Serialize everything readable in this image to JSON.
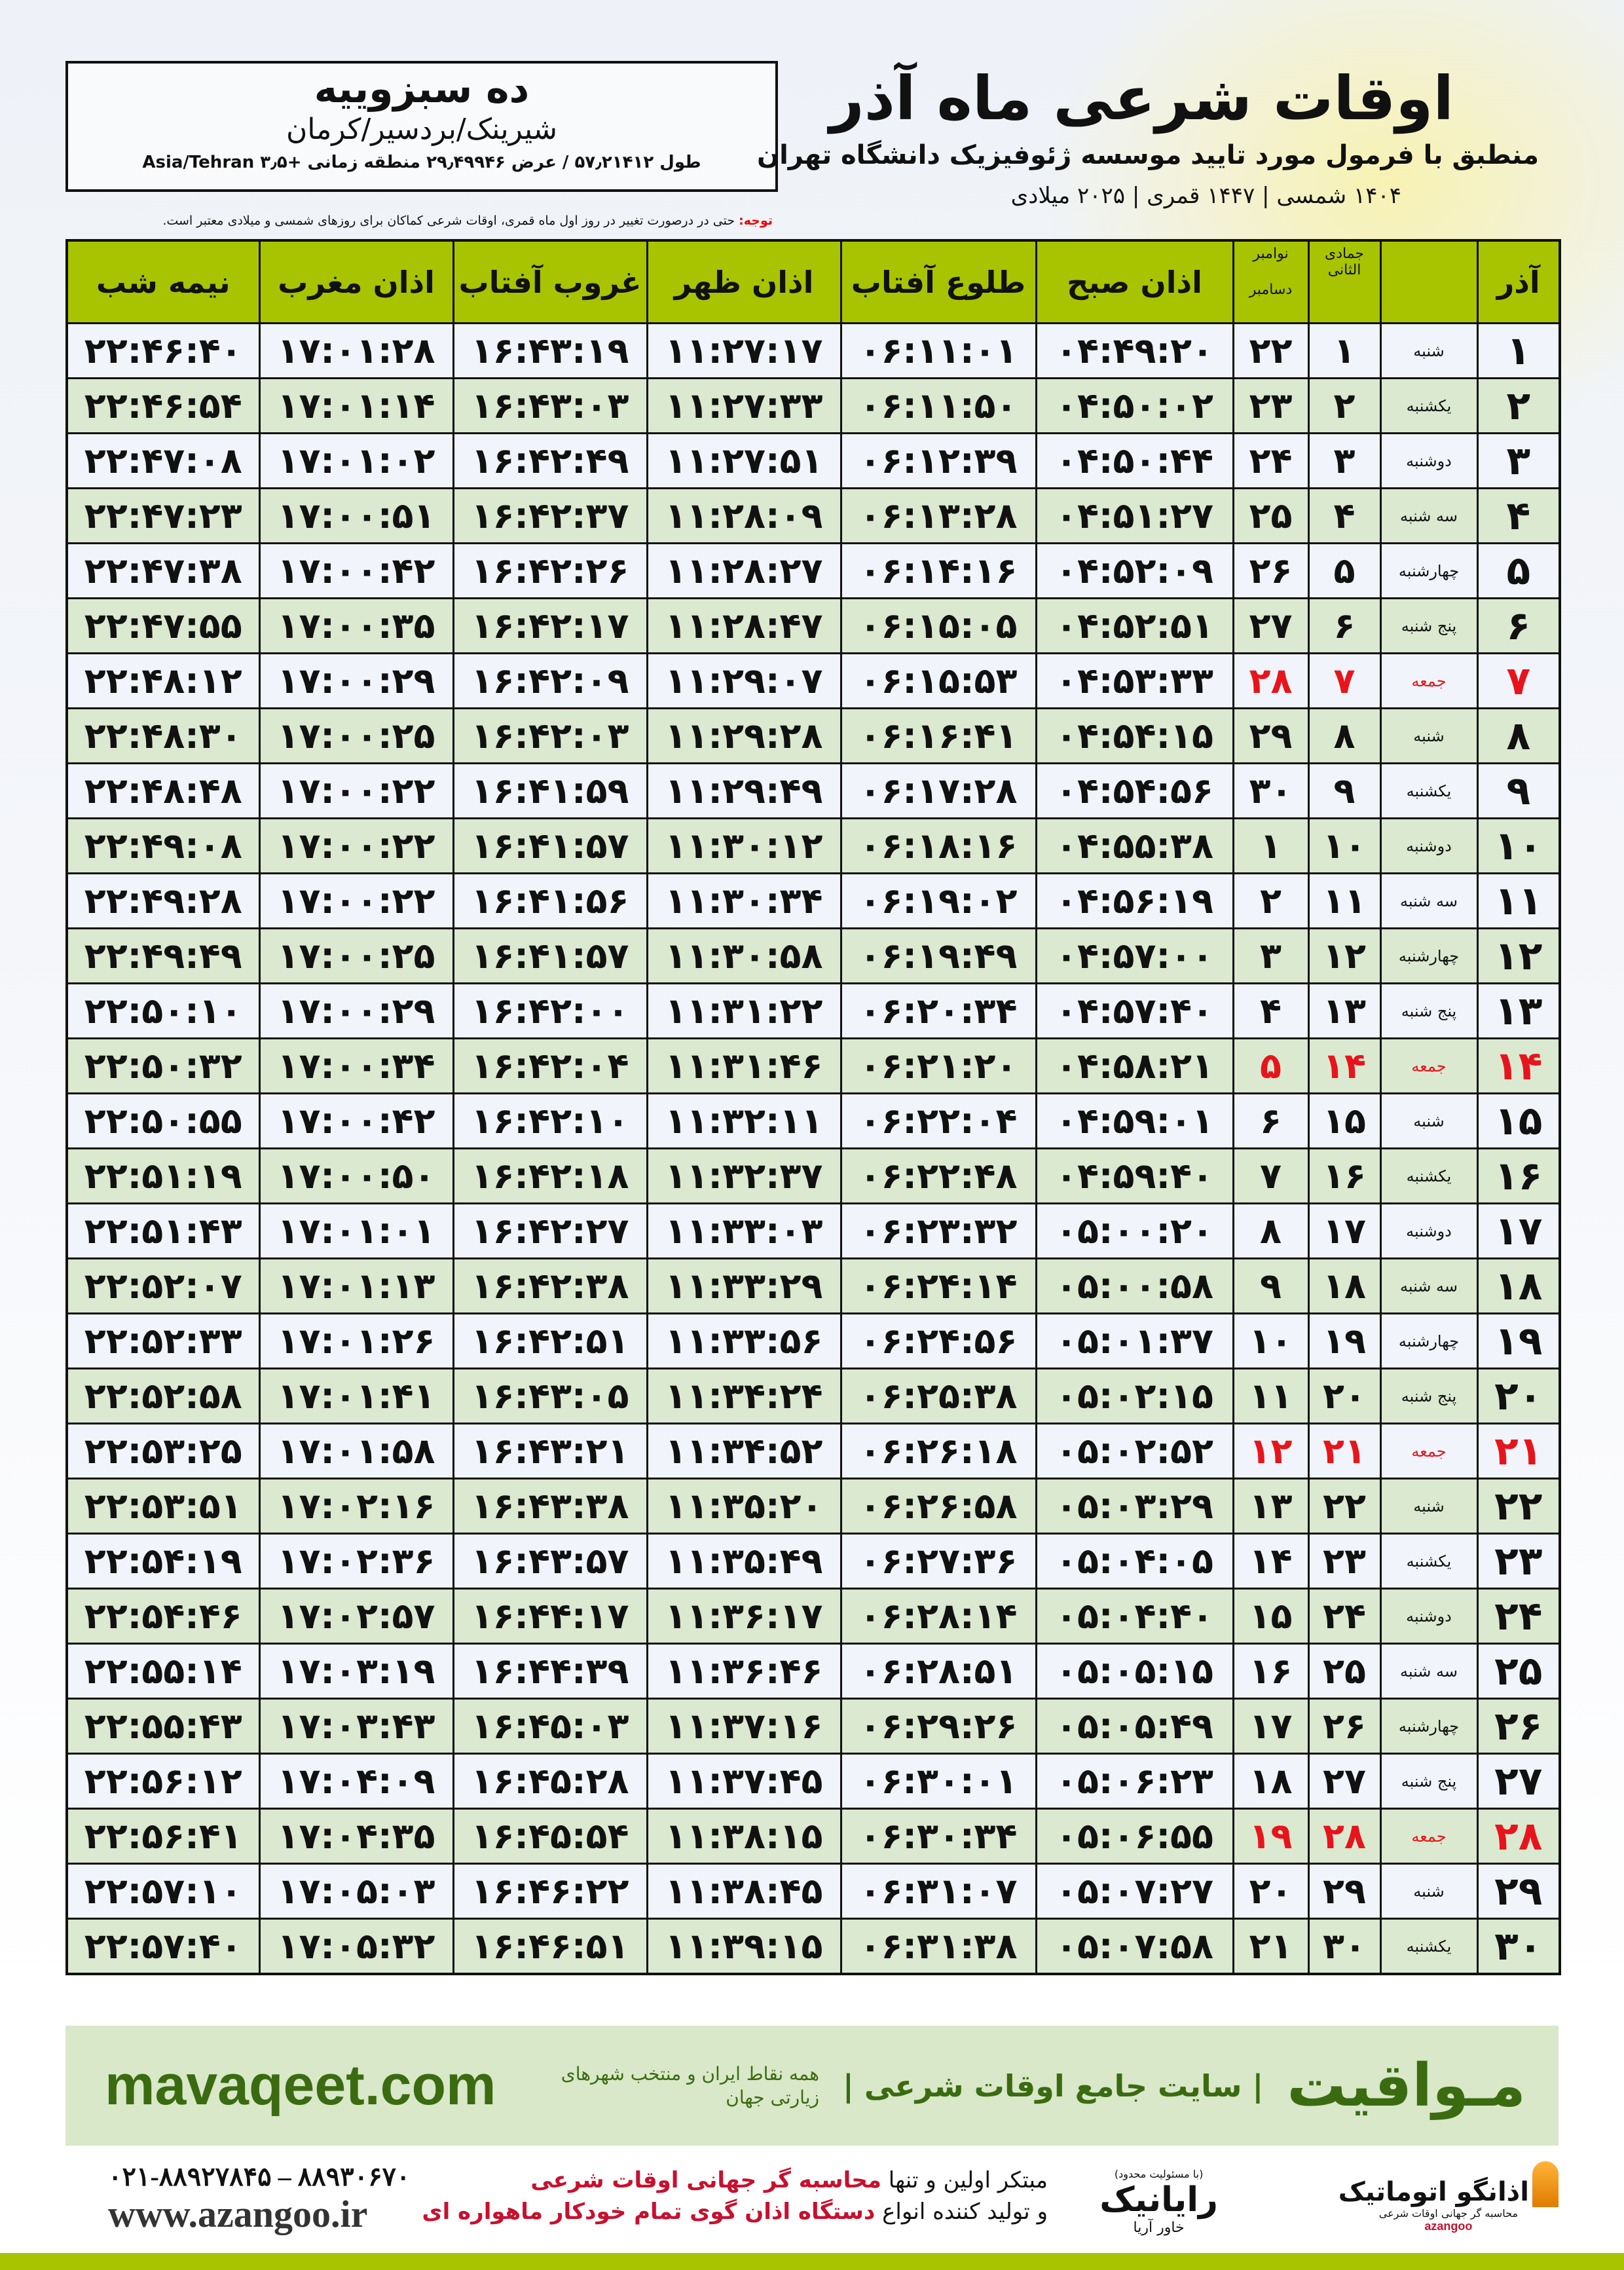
{
  "location": {
    "name": "ده سبزوییه",
    "region": "شیرینک/بردسیر/کرمان",
    "coords": "طول ۵۷٫۲۱۴۱۲ / عرض ۲۹٫۴۹۹۴۶ منطقه زمانی +۳٫۵ Asia/Tehran"
  },
  "header": {
    "title": "اوقات شرعی ماه آذر",
    "subtitle": "منطبق با فرمول مورد تایید موسسه ژئوفیزیک دانشگاه تهران",
    "dates": "۱۴۰۴ شمسی | ۱۴۴۷ قمری | ۲۰۲۵ میلادی"
  },
  "note": {
    "label": "توجه:",
    "text": " حتی در درصورت تغییر در روز اول ماه قمری، اوقات شرعی کماکان برای روزهای شمسی و میلادی معتبر است."
  },
  "columns": {
    "day": "آذر",
    "hijri": "جمادی الثانی",
    "greg1": "نوامبر",
    "greg2": "دسامبر",
    "fajr": "اذان صبح",
    "sunrise": "طلوع آفتاب",
    "dhuhr": "اذان ظهر",
    "sunset": "غروب آفتاب",
    "maghrib": "اذان مغرب",
    "midnight": "نیمه شب"
  },
  "colors": {
    "header": "#a8c400",
    "friday": "#e8141c",
    "row_alt": "#dae9cf",
    "brand": "#3b6b10"
  },
  "rows": [
    {
      "day": "۱",
      "weekday": "شنبه",
      "hijri": "۱",
      "greg": "۲۲",
      "fajr": "۰۴:۴۹:۲۰",
      "sunrise": "۰۶:۱۱:۰۱",
      "dhuhr": "۱۱:۲۷:۱۷",
      "sunset": "۱۶:۴۳:۱۹",
      "maghrib": "۱۷:۰۱:۲۸",
      "midnight": "۲۲:۴۶:۴۰"
    },
    {
      "day": "۲",
      "weekday": "یکشنبه",
      "hijri": "۲",
      "greg": "۲۳",
      "fajr": "۰۴:۵۰:۰۲",
      "sunrise": "۰۶:۱۱:۵۰",
      "dhuhr": "۱۱:۲۷:۳۳",
      "sunset": "۱۶:۴۳:۰۳",
      "maghrib": "۱۷:۰۱:۱۴",
      "midnight": "۲۲:۴۶:۵۴"
    },
    {
      "day": "۳",
      "weekday": "دوشنبه",
      "hijri": "۳",
      "greg": "۲۴",
      "fajr": "۰۴:۵۰:۴۴",
      "sunrise": "۰۶:۱۲:۳۹",
      "dhuhr": "۱۱:۲۷:۵۱",
      "sunset": "۱۶:۴۲:۴۹",
      "maghrib": "۱۷:۰۱:۰۲",
      "midnight": "۲۲:۴۷:۰۸"
    },
    {
      "day": "۴",
      "weekday": "سه شنبه",
      "hijri": "۴",
      "greg": "۲۵",
      "fajr": "۰۴:۵۱:۲۷",
      "sunrise": "۰۶:۱۳:۲۸",
      "dhuhr": "۱۱:۲۸:۰۹",
      "sunset": "۱۶:۴۲:۳۷",
      "maghrib": "۱۷:۰۰:۵۱",
      "midnight": "۲۲:۴۷:۲۳"
    },
    {
      "day": "۵",
      "weekday": "چهارشنبه",
      "hijri": "۵",
      "greg": "۲۶",
      "fajr": "۰۴:۵۲:۰۹",
      "sunrise": "۰۶:۱۴:۱۶",
      "dhuhr": "۱۱:۲۸:۲۷",
      "sunset": "۱۶:۴۲:۲۶",
      "maghrib": "۱۷:۰۰:۴۲",
      "midnight": "۲۲:۴۷:۳۸"
    },
    {
      "day": "۶",
      "weekday": "پنج شنبه",
      "hijri": "۶",
      "greg": "۲۷",
      "fajr": "۰۴:۵۲:۵۱",
      "sunrise": "۰۶:۱۵:۰۵",
      "dhuhr": "۱۱:۲۸:۴۷",
      "sunset": "۱۶:۴۲:۱۷",
      "maghrib": "۱۷:۰۰:۳۵",
      "midnight": "۲۲:۴۷:۵۵"
    },
    {
      "day": "۷",
      "weekday": "جمعه",
      "hijri": "۷",
      "greg": "۲۸",
      "fajr": "۰۴:۵۳:۳۳",
      "sunrise": "۰۶:۱۵:۵۳",
      "dhuhr": "۱۱:۲۹:۰۷",
      "sunset": "۱۶:۴۲:۰۹",
      "maghrib": "۱۷:۰۰:۲۹",
      "midnight": "۲۲:۴۸:۱۲",
      "friday": true
    },
    {
      "day": "۸",
      "weekday": "شنبه",
      "hijri": "۸",
      "greg": "۲۹",
      "fajr": "۰۴:۵۴:۱۵",
      "sunrise": "۰۶:۱۶:۴۱",
      "dhuhr": "۱۱:۲۹:۲۸",
      "sunset": "۱۶:۴۲:۰۳",
      "maghrib": "۱۷:۰۰:۲۵",
      "midnight": "۲۲:۴۸:۳۰"
    },
    {
      "day": "۹",
      "weekday": "یکشنبه",
      "hijri": "۹",
      "greg": "۳۰",
      "fajr": "۰۴:۵۴:۵۶",
      "sunrise": "۰۶:۱۷:۲۸",
      "dhuhr": "۱۱:۲۹:۴۹",
      "sunset": "۱۶:۴۱:۵۹",
      "maghrib": "۱۷:۰۰:۲۲",
      "midnight": "۲۲:۴۸:۴۸"
    },
    {
      "day": "۱۰",
      "weekday": "دوشنبه",
      "hijri": "۱۰",
      "greg": "۱",
      "fajr": "۰۴:۵۵:۳۸",
      "sunrise": "۰۶:۱۸:۱۶",
      "dhuhr": "۱۱:۳۰:۱۲",
      "sunset": "۱۶:۴۱:۵۷",
      "maghrib": "۱۷:۰۰:۲۲",
      "midnight": "۲۲:۴۹:۰۸"
    },
    {
      "day": "۱۱",
      "weekday": "سه شنبه",
      "hijri": "۱۱",
      "greg": "۲",
      "fajr": "۰۴:۵۶:۱۹",
      "sunrise": "۰۶:۱۹:۰۲",
      "dhuhr": "۱۱:۳۰:۳۴",
      "sunset": "۱۶:۴۱:۵۶",
      "maghrib": "۱۷:۰۰:۲۲",
      "midnight": "۲۲:۴۹:۲۸"
    },
    {
      "day": "۱۲",
      "weekday": "چهارشنبه",
      "hijri": "۱۲",
      "greg": "۳",
      "fajr": "۰۴:۵۷:۰۰",
      "sunrise": "۰۶:۱۹:۴۹",
      "dhuhr": "۱۱:۳۰:۵۸",
      "sunset": "۱۶:۴۱:۵۷",
      "maghrib": "۱۷:۰۰:۲۵",
      "midnight": "۲۲:۴۹:۴۹"
    },
    {
      "day": "۱۳",
      "weekday": "پنج شنبه",
      "hijri": "۱۳",
      "greg": "۴",
      "fajr": "۰۴:۵۷:۴۰",
      "sunrise": "۰۶:۲۰:۳۴",
      "dhuhr": "۱۱:۳۱:۲۲",
      "sunset": "۱۶:۴۲:۰۰",
      "maghrib": "۱۷:۰۰:۲۹",
      "midnight": "۲۲:۵۰:۱۰"
    },
    {
      "day": "۱۴",
      "weekday": "جمعه",
      "hijri": "۱۴",
      "greg": "۵",
      "fajr": "۰۴:۵۸:۲۱",
      "sunrise": "۰۶:۲۱:۲۰",
      "dhuhr": "۱۱:۳۱:۴۶",
      "sunset": "۱۶:۴۲:۰۴",
      "maghrib": "۱۷:۰۰:۳۴",
      "midnight": "۲۲:۵۰:۳۲",
      "friday": true
    },
    {
      "day": "۱۵",
      "weekday": "شنبه",
      "hijri": "۱۵",
      "greg": "۶",
      "fajr": "۰۴:۵۹:۰۱",
      "sunrise": "۰۶:۲۲:۰۴",
      "dhuhr": "۱۱:۳۲:۱۱",
      "sunset": "۱۶:۴۲:۱۰",
      "maghrib": "۱۷:۰۰:۴۲",
      "midnight": "۲۲:۵۰:۵۵"
    },
    {
      "day": "۱۶",
      "weekday": "یکشنبه",
      "hijri": "۱۶",
      "greg": "۷",
      "fajr": "۰۴:۵۹:۴۰",
      "sunrise": "۰۶:۲۲:۴۸",
      "dhuhr": "۱۱:۳۲:۳۷",
      "sunset": "۱۶:۴۲:۱۸",
      "maghrib": "۱۷:۰۰:۵۰",
      "midnight": "۲۲:۵۱:۱۹"
    },
    {
      "day": "۱۷",
      "weekday": "دوشنبه",
      "hijri": "۱۷",
      "greg": "۸",
      "fajr": "۰۵:۰۰:۲۰",
      "sunrise": "۰۶:۲۳:۳۲",
      "dhuhr": "۱۱:۳۳:۰۳",
      "sunset": "۱۶:۴۲:۲۷",
      "maghrib": "۱۷:۰۱:۰۱",
      "midnight": "۲۲:۵۱:۴۳"
    },
    {
      "day": "۱۸",
      "weekday": "سه شنبه",
      "hijri": "۱۸",
      "greg": "۹",
      "fajr": "۰۵:۰۰:۵۸",
      "sunrise": "۰۶:۲۴:۱۴",
      "dhuhr": "۱۱:۳۳:۲۹",
      "sunset": "۱۶:۴۲:۳۸",
      "maghrib": "۱۷:۰۱:۱۳",
      "midnight": "۲۲:۵۲:۰۷"
    },
    {
      "day": "۱۹",
      "weekday": "چهارشنبه",
      "hijri": "۱۹",
      "greg": "۱۰",
      "fajr": "۰۵:۰۱:۳۷",
      "sunrise": "۰۶:۲۴:۵۶",
      "dhuhr": "۱۱:۳۳:۵۶",
      "sunset": "۱۶:۴۲:۵۱",
      "maghrib": "۱۷:۰۱:۲۶",
      "midnight": "۲۲:۵۲:۳۳"
    },
    {
      "day": "۲۰",
      "weekday": "پنج شنبه",
      "hijri": "۲۰",
      "greg": "۱۱",
      "fajr": "۰۵:۰۲:۱۵",
      "sunrise": "۰۶:۲۵:۳۸",
      "dhuhr": "۱۱:۳۴:۲۴",
      "sunset": "۱۶:۴۳:۰۵",
      "maghrib": "۱۷:۰۱:۴۱",
      "midnight": "۲۲:۵۲:۵۸"
    },
    {
      "day": "۲۱",
      "weekday": "جمعه",
      "hijri": "۲۱",
      "greg": "۱۲",
      "fajr": "۰۵:۰۲:۵۲",
      "sunrise": "۰۶:۲۶:۱۸",
      "dhuhr": "۱۱:۳۴:۵۲",
      "sunset": "۱۶:۴۳:۲۱",
      "maghrib": "۱۷:۰۱:۵۸",
      "midnight": "۲۲:۵۳:۲۵",
      "friday": true
    },
    {
      "day": "۲۲",
      "weekday": "شنبه",
      "hijri": "۲۲",
      "greg": "۱۳",
      "fajr": "۰۵:۰۳:۲۹",
      "sunrise": "۰۶:۲۶:۵۸",
      "dhuhr": "۱۱:۳۵:۲۰",
      "sunset": "۱۶:۴۳:۳۸",
      "maghrib": "۱۷:۰۲:۱۶",
      "midnight": "۲۲:۵۳:۵۱"
    },
    {
      "day": "۲۳",
      "weekday": "یکشنبه",
      "hijri": "۲۳",
      "greg": "۱۴",
      "fajr": "۰۵:۰۴:۰۵",
      "sunrise": "۰۶:۲۷:۳۶",
      "dhuhr": "۱۱:۳۵:۴۹",
      "sunset": "۱۶:۴۳:۵۷",
      "maghrib": "۱۷:۰۲:۳۶",
      "midnight": "۲۲:۵۴:۱۹"
    },
    {
      "day": "۲۴",
      "weekday": "دوشنبه",
      "hijri": "۲۴",
      "greg": "۱۵",
      "fajr": "۰۵:۰۴:۴۰",
      "sunrise": "۰۶:۲۸:۱۴",
      "dhuhr": "۱۱:۳۶:۱۷",
      "sunset": "۱۶:۴۴:۱۷",
      "maghrib": "۱۷:۰۲:۵۷",
      "midnight": "۲۲:۵۴:۴۶"
    },
    {
      "day": "۲۵",
      "weekday": "سه شنبه",
      "hijri": "۲۵",
      "greg": "۱۶",
      "fajr": "۰۵:۰۵:۱۵",
      "sunrise": "۰۶:۲۸:۵۱",
      "dhuhr": "۱۱:۳۶:۴۶",
      "sunset": "۱۶:۴۴:۳۹",
      "maghrib": "۱۷:۰۳:۱۹",
      "midnight": "۲۲:۵۵:۱۴"
    },
    {
      "day": "۲۶",
      "weekday": "چهارشنبه",
      "hijri": "۲۶",
      "greg": "۱۷",
      "fajr": "۰۵:۰۵:۴۹",
      "sunrise": "۰۶:۲۹:۲۶",
      "dhuhr": "۱۱:۳۷:۱۶",
      "sunset": "۱۶:۴۵:۰۳",
      "maghrib": "۱۷:۰۳:۴۳",
      "midnight": "۲۲:۵۵:۴۳"
    },
    {
      "day": "۲۷",
      "weekday": "پنج شنبه",
      "hijri": "۲۷",
      "greg": "۱۸",
      "fajr": "۰۵:۰۶:۲۳",
      "sunrise": "۰۶:۳۰:۰۱",
      "dhuhr": "۱۱:۳۷:۴۵",
      "sunset": "۱۶:۴۵:۲۸",
      "maghrib": "۱۷:۰۴:۰۹",
      "midnight": "۲۲:۵۶:۱۲"
    },
    {
      "day": "۲۸",
      "weekday": "جمعه",
      "hijri": "۲۸",
      "greg": "۱۹",
      "fajr": "۰۵:۰۶:۵۵",
      "sunrise": "۰۶:۳۰:۳۴",
      "dhuhr": "۱۱:۳۸:۱۵",
      "sunset": "۱۶:۴۵:۵۴",
      "maghrib": "۱۷:۰۴:۳۵",
      "midnight": "۲۲:۵۶:۴۱",
      "friday": true
    },
    {
      "day": "۲۹",
      "weekday": "شنبه",
      "hijri": "۲۹",
      "greg": "۲۰",
      "fajr": "۰۵:۰۷:۲۷",
      "sunrise": "۰۶:۳۱:۰۷",
      "dhuhr": "۱۱:۳۸:۴۵",
      "sunset": "۱۶:۴۶:۲۲",
      "maghrib": "۱۷:۰۵:۰۳",
      "midnight": "۲۲:۵۷:۱۰"
    },
    {
      "day": "۳۰",
      "weekday": "یکشنبه",
      "hijri": "۳۰",
      "greg": "۲۱",
      "fajr": "۰۵:۰۷:۵۸",
      "sunrise": "۰۶:۳۱:۳۸",
      "dhuhr": "۱۱:۳۹:۱۵",
      "sunset": "۱۶:۴۶:۵۱",
      "maghrib": "۱۷:۰۵:۳۲",
      "midnight": "۲۲:۵۷:۴۰"
    }
  ],
  "footer": {
    "brand": "مـواقیت",
    "tagline": "| سایت جامع اوقات شرعی |",
    "tagline2": "همه نقاط ایران و منتخب شهرهای زیارتی جهان",
    "site": "mavaqeet.com",
    "phone": "۰۲۱-۸۸۹۲۷۸۴۵ – ۸۸۹۳۰۶۷۰",
    "www": "www.azangoo.ir",
    "promo1a": "مبتکر اولین و تنها ",
    "promo1b": "محاسبه گر جهانی اوقات شرعی",
    "promo2a": "و تولید کننده انواع ",
    "promo2b": "دستگاه اذان گوی تمام خودکار ماهواره ای",
    "logo1_note": "(با مسئولیت محدود)",
    "logo1_name": "رایانیک",
    "logo1_sub": "خاور آریا",
    "logo2_name": "اذانگو اتوماتیک",
    "logo2_sub": "محاسبه گر جهانی اوقات شرعی",
    "logo2_latin": "azangoo"
  }
}
